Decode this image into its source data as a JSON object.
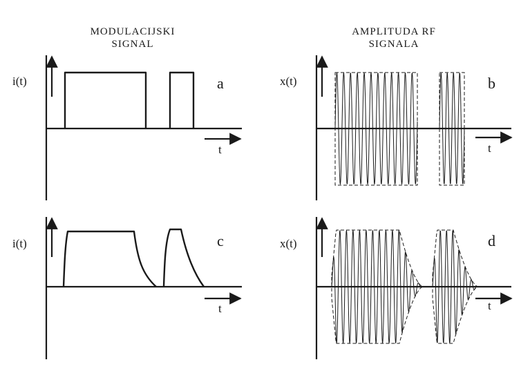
{
  "titles": {
    "left_line1": "MODULACIJSKI",
    "left_line2": "SIGNAL",
    "right_line1": "AMPLITUDA RF",
    "right_line2": "SIGNALA"
  },
  "axis_labels": {
    "current": "i(t)",
    "rf": "x(t)",
    "time": "t"
  },
  "panels": {
    "a": "a",
    "b": "b",
    "c": "c",
    "d": "d"
  }
}
